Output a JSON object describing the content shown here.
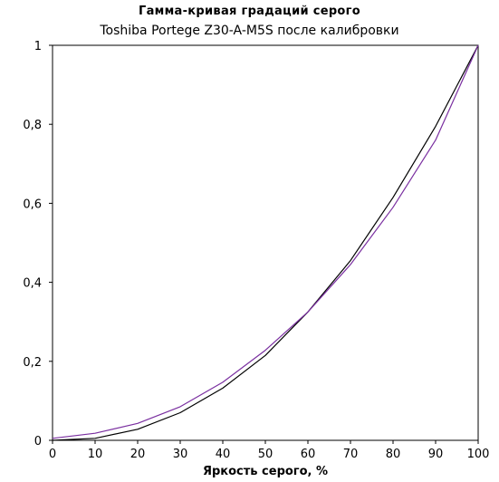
{
  "chart_data": {
    "type": "line",
    "title": "Гамма-кривая  градаций  серого",
    "subtitle": "Toshiba Portege Z30-A-M5S после калибровки",
    "xlabel": "Яркость серого, %",
    "ylabel": "",
    "xlim": [
      0,
      100
    ],
    "ylim": [
      0,
      1
    ],
    "x_ticks": [
      0,
      10,
      20,
      30,
      40,
      50,
      60,
      70,
      80,
      90,
      100
    ],
    "y_ticks": [
      0,
      0.2,
      0.4,
      0.6,
      0.8,
      1
    ],
    "x_tick_labels": [
      "0",
      "10",
      "20",
      "30",
      "40",
      "50",
      "60",
      "70",
      "80",
      "90",
      "100"
    ],
    "y_tick_labels": [
      "0",
      "0,2",
      "0,4",
      "0,6",
      "0,8",
      "1"
    ],
    "grid": false,
    "legend": "none",
    "x": [
      0,
      10,
      20,
      30,
      40,
      50,
      60,
      70,
      80,
      90,
      100
    ],
    "series": [
      {
        "color": "#000000",
        "values": [
          0,
          0.005,
          0.028,
          0.07,
          0.132,
          0.215,
          0.325,
          0.455,
          0.615,
          0.795,
          1.0
        ]
      },
      {
        "color": "#7a2fa0",
        "values": [
          0.005,
          0.018,
          0.043,
          0.085,
          0.147,
          0.228,
          0.325,
          0.445,
          0.59,
          0.76,
          1.0
        ]
      }
    ]
  }
}
